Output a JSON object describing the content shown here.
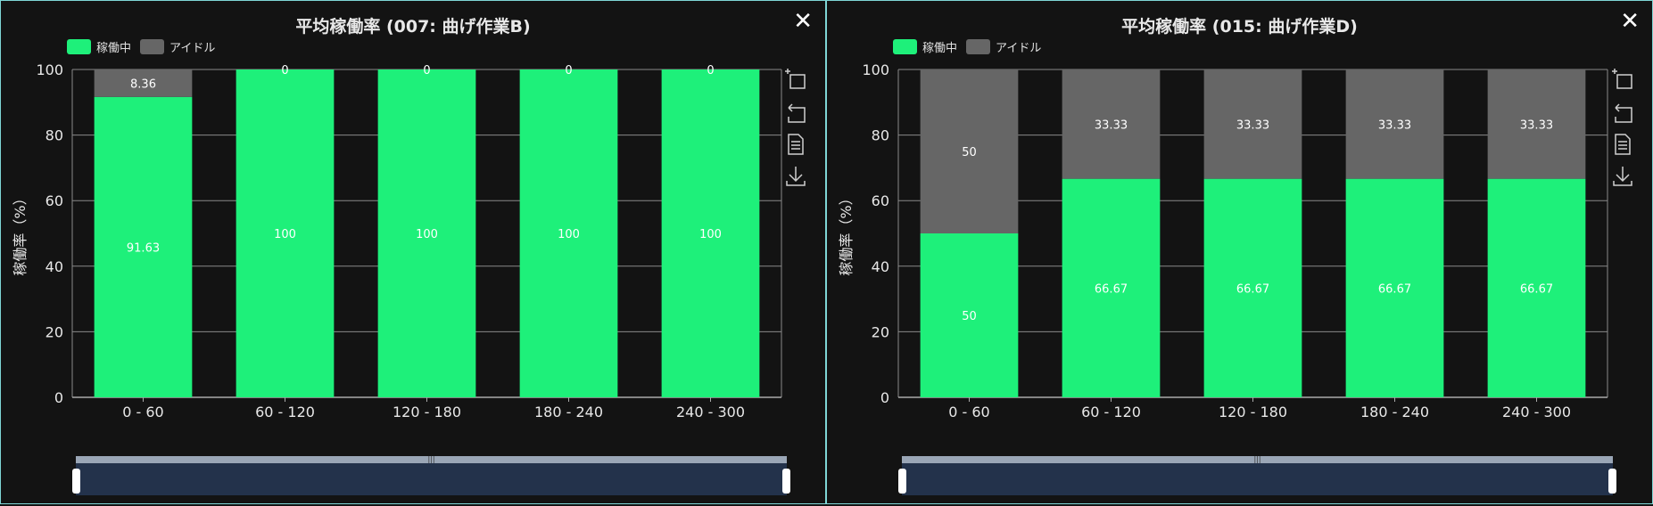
{
  "colors": {
    "running": "#1ef07a",
    "idle": "#666666",
    "background": "#131313",
    "grid": "#8a8a8a"
  },
  "legend": {
    "running": "稼働中",
    "idle": "アイドル"
  },
  "chart_data": [
    {
      "type": "bar",
      "stacked": true,
      "title": "平均稼働率 (007: 曲げ作業B)",
      "ylabel": "稼働率（%）",
      "xlabel": "",
      "ylim": [
        0,
        100
      ],
      "yticks": [
        0,
        20,
        40,
        60,
        80,
        100
      ],
      "categories": [
        "0 - 60",
        "60 - 120",
        "120 - 180",
        "180 - 240",
        "240 - 300"
      ],
      "series": [
        {
          "name": "稼働中",
          "values": [
            91.63,
            100,
            100,
            100,
            100
          ]
        },
        {
          "name": "アイドル",
          "values": [
            8.36,
            0,
            0,
            0,
            0
          ]
        }
      ],
      "grid": true,
      "legend_position": "top-left"
    },
    {
      "type": "bar",
      "stacked": true,
      "title": "平均稼働率 (015: 曲げ作業D)",
      "ylabel": "稼働率（%）",
      "xlabel": "",
      "ylim": [
        0,
        100
      ],
      "yticks": [
        0,
        20,
        40,
        60,
        80,
        100
      ],
      "categories": [
        "0 - 60",
        "60 - 120",
        "120 - 180",
        "180 - 240",
        "240 - 300"
      ],
      "series": [
        {
          "name": "稼働中",
          "values": [
            50,
            66.67,
            66.67,
            66.67,
            66.67
          ]
        },
        {
          "name": "アイドル",
          "values": [
            50,
            33.33,
            33.33,
            33.33,
            33.33
          ]
        }
      ],
      "grid": true,
      "legend_position": "top-left"
    }
  ],
  "icons": {
    "close": "close-icon",
    "toolbox": [
      "zoom-icon",
      "restore-icon",
      "data-view-icon",
      "save-image-icon"
    ]
  }
}
